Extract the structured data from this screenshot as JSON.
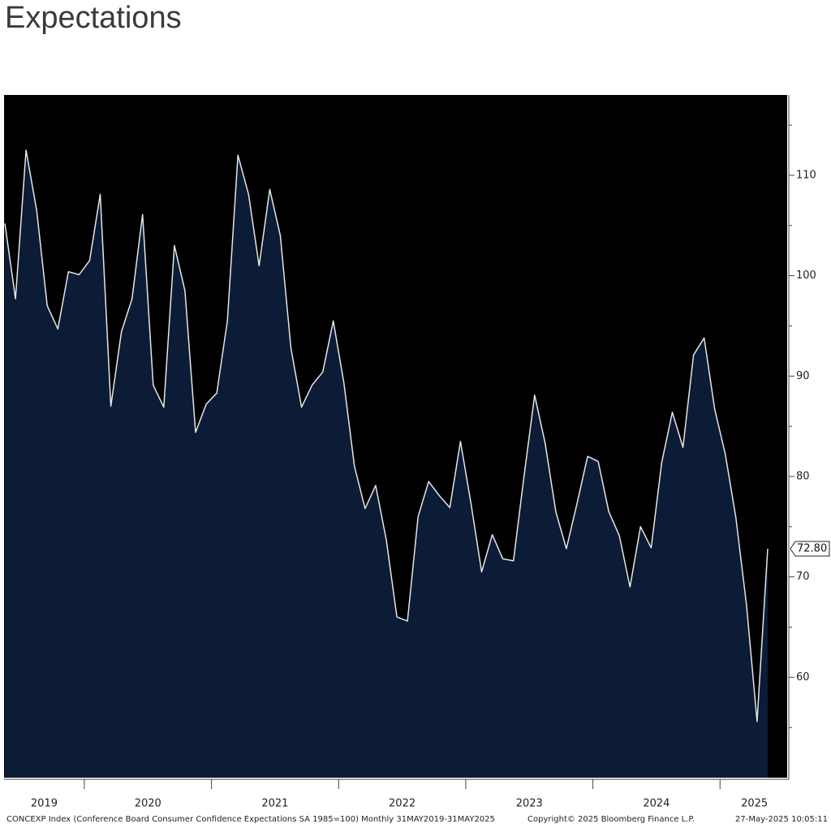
{
  "chart_data": {
    "type": "area",
    "title": "Expectations",
    "x_labels": [
      "2019",
      "2020",
      "2021",
      "2022",
      "2023",
      "2024",
      "2025"
    ],
    "series": [
      {
        "name": "CONCEXP Index",
        "color": "#0c1c36",
        "line_color": "#e6e6e6",
        "values": [
          105.2,
          97.7,
          112.5,
          106.5,
          97.0,
          94.7,
          100.4,
          100.1,
          101.5,
          108.1,
          87.0,
          94.4,
          97.7,
          106.1,
          89.1,
          86.9,
          103.0,
          98.5,
          84.4,
          87.2,
          88.3,
          95.5,
          112.0,
          108.1,
          101.0,
          108.6,
          104.0,
          92.8,
          86.9,
          89.1,
          90.4,
          95.5,
          89.3,
          81.0,
          76.8,
          79.1,
          73.7,
          66.0,
          65.6,
          76.0,
          79.5,
          78.1,
          76.9,
          83.5,
          77.3,
          70.5,
          74.2,
          71.8,
          71.6,
          80.0,
          88.1,
          83.3,
          76.5,
          72.8,
          77.3,
          82.0,
          81.5,
          76.5,
          74.1,
          69.0,
          75.0,
          72.9,
          81.4,
          86.4,
          82.9,
          92.1,
          93.8,
          86.7,
          82.2,
          75.9,
          67.2,
          55.6,
          72.8
        ],
        "value_labels": [
          null,
          null,
          null,
          null,
          null,
          null,
          null,
          null,
          null,
          null,
          null,
          null,
          null,
          null,
          null,
          null,
          null,
          null,
          null,
          null,
          null,
          null,
          null,
          null,
          null,
          null,
          null,
          null,
          null,
          null,
          null,
          null,
          null,
          null,
          null,
          null,
          null,
          null,
          null,
          null,
          null,
          null,
          null,
          null,
          null,
          null,
          null,
          null,
          null,
          null,
          null,
          null,
          null,
          null,
          null,
          null,
          null,
          null,
          null,
          null,
          null,
          null,
          null,
          null,
          null,
          null,
          null,
          null,
          null,
          null,
          null,
          null,
          "72.80"
        ]
      }
    ],
    "ylim": [
      50,
      118
    ],
    "yticks": [
      60,
      70,
      80,
      90,
      100,
      110
    ],
    "yminorticks": [
      55,
      65,
      75,
      85,
      95,
      105,
      115
    ],
    "y_axis_side": "right",
    "footer": {
      "source": "CONCEXP Index (Conference Board Consumer Confidence Expectations SA 1985=100)  Monthly 31MAY2019-31MAY2025",
      "copyright": "Copyright© 2025 Bloomberg Finance L.P.",
      "timestamp": "27-May-2025 10:05:11"
    }
  }
}
